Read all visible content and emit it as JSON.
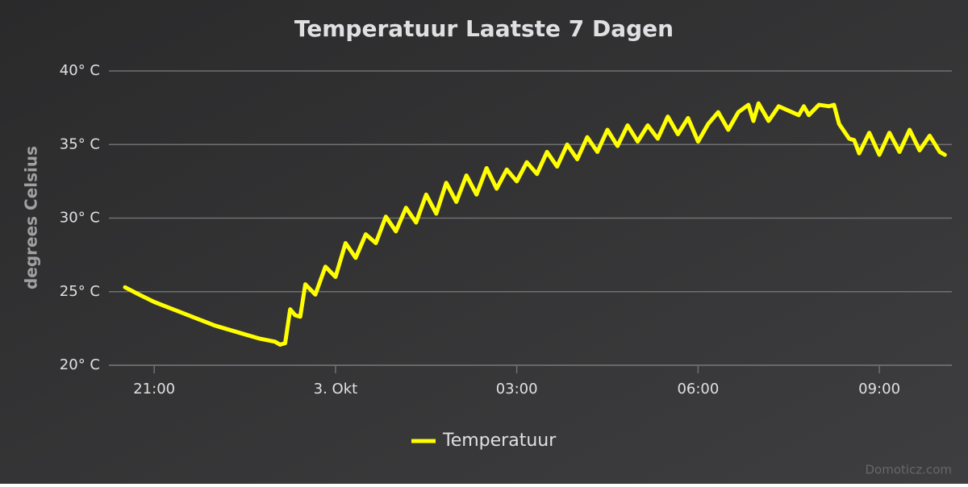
{
  "chart_data": {
    "type": "line",
    "title": "Temperatuur Laatste 7 Dagen",
    "y_label": "degrees Celsius",
    "credit": "Domoticz.com",
    "x": [
      "20:31",
      "20:45",
      "21:00",
      "21:15",
      "21:30",
      "21:45",
      "22:00",
      "22:15",
      "22:30",
      "22:45",
      "23:00",
      "23:05",
      "23:10",
      "23:15",
      "23:20",
      "23:25",
      "23:30",
      "23:40",
      "23:50",
      "00:00",
      "00:10",
      "00:20",
      "00:30",
      "00:40",
      "00:50",
      "01:00",
      "01:10",
      "01:20",
      "01:30",
      "01:40",
      "01:50",
      "02:00",
      "02:10",
      "02:20",
      "02:30",
      "02:40",
      "02:50",
      "03:00",
      "03:10",
      "03:20",
      "03:30",
      "03:40",
      "03:50",
      "04:00",
      "04:10",
      "04:20",
      "04:30",
      "04:40",
      "04:50",
      "05:00",
      "05:10",
      "05:20",
      "05:30",
      "05:40",
      "05:50",
      "06:00",
      "06:10",
      "06:20",
      "06:30",
      "06:40",
      "06:50",
      "06:55",
      "07:00",
      "07:10",
      "07:20",
      "07:30",
      "07:40",
      "07:45",
      "07:50",
      "08:00",
      "08:10",
      "08:15",
      "08:20",
      "08:30",
      "08:35",
      "08:40",
      "08:50",
      "09:00",
      "09:10",
      "09:20",
      "09:30",
      "09:40",
      "09:50",
      "10:00",
      "10:05"
    ],
    "series": [
      {
        "name": "Temperatuur",
        "color": "#ffff00",
        "values": [
          25.3,
          24.8,
          24.3,
          23.9,
          23.5,
          23.1,
          22.7,
          22.4,
          22.1,
          21.8,
          21.6,
          21.4,
          21.5,
          23.8,
          23.4,
          23.3,
          25.5,
          24.8,
          26.7,
          26.0,
          28.3,
          27.3,
          28.9,
          28.3,
          30.1,
          29.1,
          30.7,
          29.7,
          31.6,
          30.3,
          32.4,
          31.1,
          32.9,
          31.6,
          33.4,
          32.0,
          33.3,
          32.5,
          33.8,
          33.0,
          34.5,
          33.5,
          35.0,
          34.0,
          35.5,
          34.5,
          36.0,
          34.9,
          36.3,
          35.2,
          36.3,
          35.4,
          36.9,
          35.7,
          36.8,
          35.2,
          36.4,
          37.2,
          36.0,
          37.2,
          37.7,
          36.6,
          37.8,
          36.6,
          37.6,
          37.3,
          37.0,
          37.6,
          37.0,
          37.7,
          37.6,
          37.7,
          36.4,
          35.4,
          35.3,
          34.4,
          35.8,
          34.3,
          35.8,
          34.5,
          36.0,
          34.6,
          35.6,
          34.5,
          34.3
        ]
      }
    ],
    "xlim": [
      "20:15",
      "10:12"
    ],
    "xticks": [
      {
        "value": "21:00",
        "label": "21:00"
      },
      {
        "value": "00:00",
        "label": "3. Okt"
      },
      {
        "value": "03:00",
        "label": "03:00"
      },
      {
        "value": "06:00",
        "label": "06:00"
      },
      {
        "value": "09:00",
        "label": "09:00"
      }
    ],
    "ylim": [
      20,
      40
    ],
    "yticks": [
      {
        "value": 20,
        "label": "20° C"
      },
      {
        "value": 25,
        "label": "25° C"
      },
      {
        "value": 30,
        "label": "30° C"
      },
      {
        "value": 35,
        "label": "35° C"
      },
      {
        "value": 40,
        "label": "40° C"
      }
    ],
    "grid": true,
    "legend": "bottom"
  }
}
